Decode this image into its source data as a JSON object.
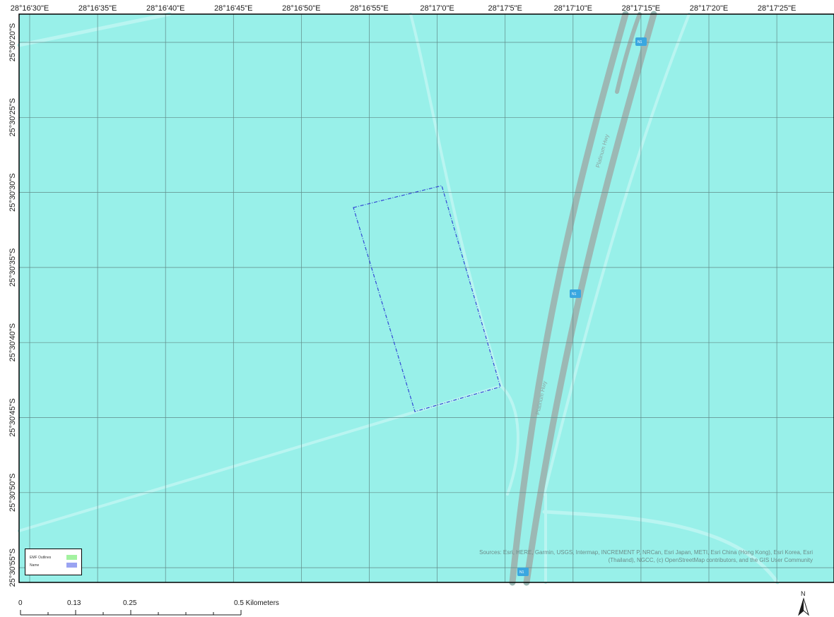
{
  "map": {
    "background_color": "#98f0e9",
    "grid_color": "#5f8a88",
    "road_color": "#b9f5f1",
    "highway_color": "#9cb8b4",
    "boundary_color": "#3247d4",
    "top_labels": [
      "28°16'30\"E",
      "28°16'35\"E",
      "28°16'40\"E",
      "28°16'45\"E",
      "28°16'50\"E",
      "28°16'55\"E",
      "28°17'0\"E",
      "28°17'5\"E",
      "28°17'10\"E",
      "28°17'15\"E",
      "28°17'20\"E",
      "28°17'25\"E"
    ],
    "left_labels": [
      "25°30'20\"S",
      "25°30'25\"S",
      "25°30'30\"S",
      "25°30'35\"S",
      "25°30'40\"S",
      "25°30'45\"S",
      "25°30'50\"S",
      "25°30'55\"S"
    ],
    "route_shield_label": "N1",
    "route_shield_color": "#3aa7e0",
    "road_labels": [
      "Platinum Hwy",
      "Platinum Hwy"
    ],
    "attribution_line1": "Sources: Esri, HERE, Garmin, USGS, Intermap, INCREMENT P, NRCan, Esri Japan, METI, Esri China (Hong Kong), Esri Korea, Esri",
    "attribution_line2": "(Thailand), NGCC, (c) OpenStreetMap contributors, and the GIS User Community"
  },
  "legend": {
    "items": [
      {
        "label": "EMF Outlines",
        "color": "#a3f2a0"
      },
      {
        "label": "Name",
        "color": "#9aa3f2"
      }
    ]
  },
  "scale_bar": {
    "labels": [
      "0",
      "0.13",
      "0.25",
      "0.5 Kilometers"
    ]
  },
  "north_arrow": {
    "label": "N"
  }
}
